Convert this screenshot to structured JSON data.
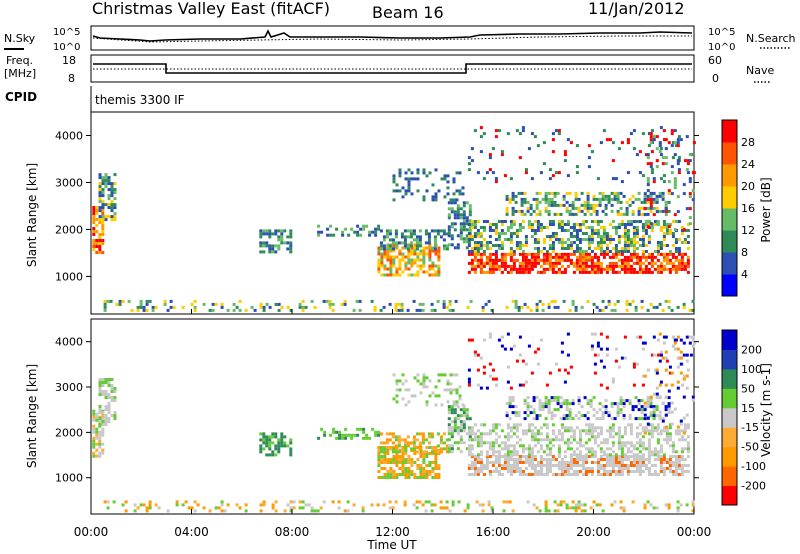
{
  "header": {
    "title": "Christmas Valley East (fitACF)",
    "beam": "Beam 16",
    "date": "11/Jan/2012"
  },
  "panels": {
    "sky_label": "N.Sky",
    "search_label": "N.Search",
    "freq_label": "Freq.",
    "freq_unit": "[MHz]",
    "nave_label": "Nave",
    "cpid_label": "CPID",
    "cpid_value": "themis 3300 IF",
    "sky_ticks": [
      "10^5",
      "10^0"
    ],
    "search_ticks": [
      "10^5",
      "10^0"
    ],
    "freq_ticks": [
      "18",
      "8"
    ],
    "nave_ticks": [
      "60",
      "0"
    ]
  },
  "colors": {
    "power_scale": [
      "#0000ff",
      "#2c4fb4",
      "#2e8b57",
      "#66bb66",
      "#ffcc00",
      "#ff9900",
      "#ff5500",
      "#ff0000"
    ],
    "velocity_scale": [
      "#ff0000",
      "#ff6600",
      "#ff9900",
      "#ffaa33",
      "#c8c8c8",
      "#66cc33",
      "#2e8b57",
      "#1f3fb4",
      "#0000cc"
    ]
  },
  "chart_data": [
    {
      "type": "heatmap",
      "name": "power",
      "title": "",
      "xlabel": "",
      "ylabel": "Slant Range [km]",
      "colorbar_label": "Power [dB]",
      "colorbar_ticks": [
        "4",
        "8",
        "12",
        "16",
        "20",
        "24",
        "28"
      ],
      "x_ticks": [],
      "y_ticks": [
        "1000",
        "2000",
        "3000",
        "4000"
      ],
      "xlim_hours": [
        0,
        24
      ],
      "ylim_km": [
        200,
        4500
      ]
    },
    {
      "type": "heatmap",
      "name": "velocity",
      "title": "",
      "xlabel": "Time UT",
      "ylabel": "Slant Range [km]",
      "colorbar_label": "Velocity [m s-1]",
      "colorbar_ticks": [
        "-200",
        "-100",
        "-50",
        "-15",
        "15",
        "50",
        "100",
        "200"
      ],
      "x_ticks": [
        "00:00",
        "04:00",
        "08:00",
        "12:00",
        "16:00",
        "20:00",
        "00:00"
      ],
      "y_ticks": [
        "1000",
        "2000",
        "3000",
        "4000"
      ],
      "xlim_hours": [
        0,
        24
      ],
      "ylim_km": [
        200,
        4500
      ]
    }
  ]
}
